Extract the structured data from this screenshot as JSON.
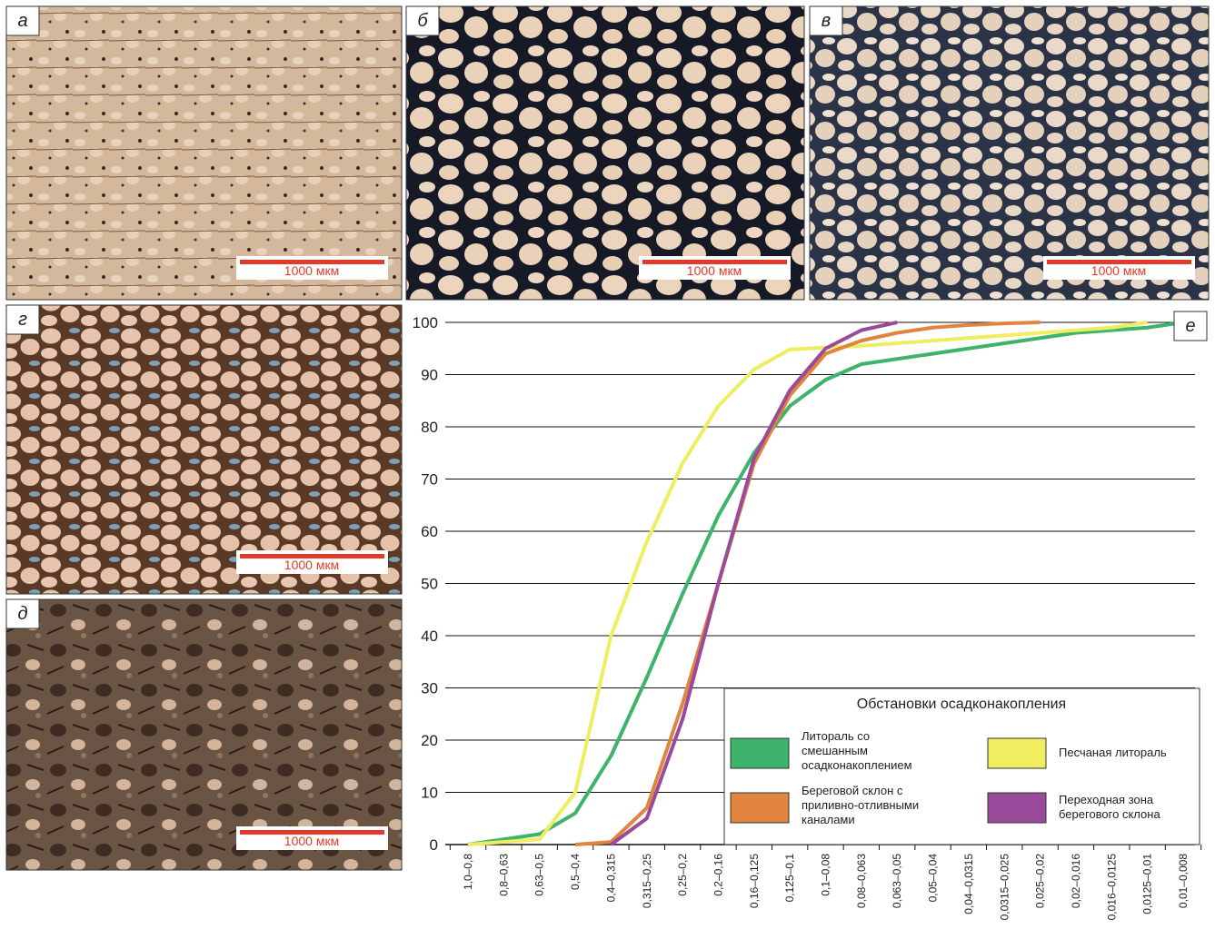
{
  "photos": [
    {
      "label": "а",
      "scale": "1000 мкм"
    },
    {
      "label": "б",
      "scale": "1000 мкм"
    },
    {
      "label": "в",
      "scale": "1000 мкм"
    },
    {
      "label": "г",
      "scale": "1000 мкм"
    },
    {
      "label": "д",
      "scale": "1000 мкм"
    }
  ],
  "chart_data": {
    "type": "line",
    "panel_label": "е",
    "categories": [
      "1,0–0,8",
      "0,8–0,63",
      "0,63–0,5",
      "0,5–0,4",
      "0,4–0,315",
      "0,315–0,25",
      "0,25–0,2",
      "0,2–0,16",
      "0,16–0,125",
      "0,125–0,1",
      "0,1–0,08",
      "0,08–0,063",
      "0,063–0,05",
      "0,05–0,04",
      "0,04–0,0315",
      "0,0315–0,025",
      "0,025–0,02",
      "0,02–0,016",
      "0,016–0,0125",
      "0,0125–0,01",
      "0,01–0,008"
    ],
    "ylim": [
      0,
      100
    ],
    "yticks": [
      0,
      10,
      20,
      30,
      40,
      50,
      60,
      70,
      80,
      90,
      100
    ],
    "grid": true,
    "legend_title": "Обстановки осадконакопления",
    "series": [
      {
        "name": "Литораль со смешанным осадконакоплением",
        "color": "#3db36b",
        "values": [
          0,
          1,
          2,
          6,
          17,
          32,
          48,
          63,
          75,
          84,
          89,
          92,
          93,
          94,
          95,
          96,
          97,
          98,
          98.5,
          99,
          100
        ]
      },
      {
        "name": "Песчаная литораль",
        "color": "#eeee60",
        "values": [
          0,
          0.5,
          1,
          10,
          40,
          58,
          73,
          84,
          91,
          94.8,
          95.2,
          95.5,
          96,
          96.5,
          97,
          97.5,
          98,
          98.5,
          99,
          100,
          null
        ]
      },
      {
        "name": "Береговой склон с приливно-отливными каналами",
        "color": "#e0843f",
        "values": [
          null,
          null,
          null,
          0,
          0.5,
          7,
          27,
          50,
          73,
          86,
          94,
          96.5,
          98,
          99,
          99.5,
          99.8,
          100,
          null,
          null,
          null,
          null
        ]
      },
      {
        "name": "Переходная зона берегового склона",
        "color": "#9a4a9a",
        "values": [
          null,
          null,
          null,
          null,
          0,
          5,
          24,
          50,
          74,
          87,
          95,
          98.5,
          100,
          null,
          null,
          null,
          null,
          null,
          null,
          null,
          null
        ]
      }
    ]
  }
}
